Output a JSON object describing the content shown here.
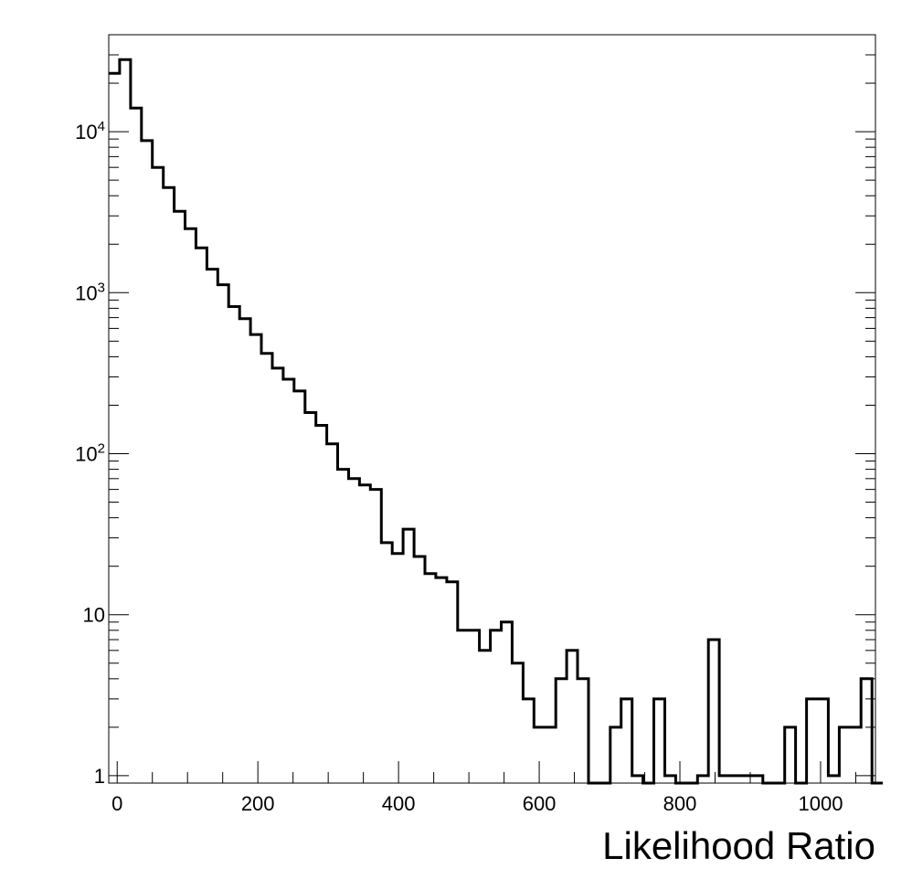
{
  "chart_data": {
    "type": "histogram",
    "title": "",
    "xlabel": "Likelihood Ratio",
    "ylabel": "",
    "y_scale": "log",
    "grid": false,
    "legend": "none",
    "line_color": "#000000",
    "xlim": [
      -12,
      1078
    ],
    "ylim": [
      0.9,
      40000
    ],
    "bin_edges_start": -12,
    "bin_width": 15.5,
    "x_ticks": [
      {
        "value": 0,
        "label": "0"
      },
      {
        "value": 200,
        "label": "200"
      },
      {
        "value": 400,
        "label": "400"
      },
      {
        "value": 600,
        "label": "600"
      },
      {
        "value": 800,
        "label": "800"
      },
      {
        "value": 1000,
        "label": "1000"
      }
    ],
    "y_ticks": [
      {
        "value": 1,
        "label": "1"
      },
      {
        "value": 10,
        "label": "10"
      },
      {
        "value": 100,
        "base": "10",
        "exp": "2"
      },
      {
        "value": 1000,
        "base": "10",
        "exp": "3"
      },
      {
        "value": 10000,
        "base": "10",
        "exp": "4"
      }
    ],
    "counts": [
      23000,
      28000,
      14000,
      8800,
      6000,
      4500,
      3200,
      2500,
      1900,
      1400,
      1120,
      820,
      690,
      550,
      420,
      340,
      290,
      245,
      180,
      150,
      115,
      80,
      70,
      64,
      60,
      28,
      24,
      34,
      23,
      18,
      17,
      16,
      8,
      8,
      6,
      8,
      9,
      5,
      3,
      2,
      2,
      4,
      6,
      4,
      0,
      0,
      2,
      3,
      1,
      0,
      3,
      1,
      0,
      0,
      1,
      7,
      1,
      1,
      1,
      1,
      0,
      0,
      2,
      0,
      3,
      3,
      1,
      2,
      2,
      4,
      0
    ]
  }
}
